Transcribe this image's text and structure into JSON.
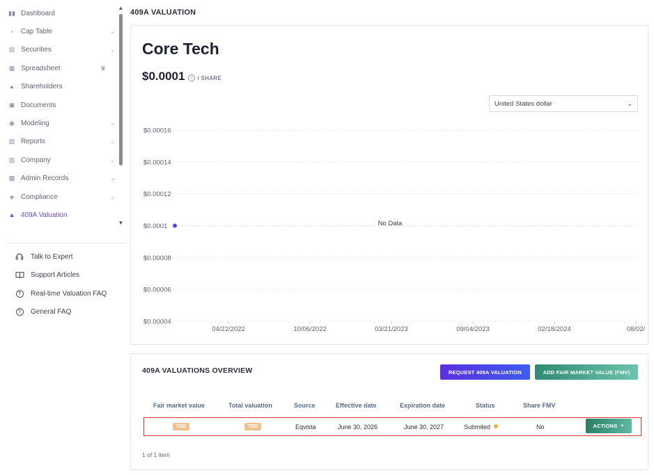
{
  "sidebar": {
    "items": [
      {
        "label": "Dashboard",
        "icon": "dashboard-icon",
        "glyph": "▮▮",
        "chevron": false
      },
      {
        "label": "Cap Table",
        "icon": "pie-chart-icon",
        "glyph": "◔",
        "chevron": true
      },
      {
        "label": "Securities",
        "icon": "clipboard-icon",
        "glyph": "▤",
        "chevron": true
      },
      {
        "label": "Spreadsheet",
        "icon": "table-icon",
        "glyph": "▦",
        "chevron": false,
        "crown": true
      },
      {
        "label": "Shareholders",
        "icon": "user-icon",
        "glyph": "●",
        "chevron": false
      },
      {
        "label": "Documents",
        "icon": "folder-icon",
        "glyph": "▣",
        "chevron": false
      },
      {
        "label": "Modeling",
        "icon": "lightbulb-icon",
        "glyph": "◉",
        "chevron": true
      },
      {
        "label": "Reports",
        "icon": "report-icon",
        "glyph": "▧",
        "chevron": true
      },
      {
        "label": "Company",
        "icon": "building-icon",
        "glyph": "▥",
        "chevron": true
      },
      {
        "label": "Admin Records",
        "icon": "records-icon",
        "glyph": "▩",
        "chevron": true
      },
      {
        "label": "Compliance",
        "icon": "shield-icon",
        "glyph": "◈",
        "chevron": true
      },
      {
        "label": "409A Valuation",
        "icon": "bar-chart-icon",
        "glyph": "▲",
        "chevron": false,
        "active": true
      }
    ],
    "help": [
      {
        "label": "Talk to Expert",
        "icon": "headset-icon"
      },
      {
        "label": "Support Articles",
        "icon": "book-icon"
      },
      {
        "label": "Real-time Valuation FAQ",
        "icon": "question-circle-icon"
      },
      {
        "label": "General FAQ",
        "icon": "question-circle-icon"
      }
    ]
  },
  "page": {
    "title": "409A VALUATION"
  },
  "summary": {
    "company": "Core Tech",
    "price": "$0.0001",
    "per_share": "/ SHARE",
    "currency": "United States dollar"
  },
  "chart_data": {
    "type": "scatter",
    "x_tick_labels": [
      "04/22/2022",
      "10/06/2022",
      "03/21/2023",
      "09/04/2023",
      "02/18/2024",
      "08/02/"
    ],
    "y_tick_labels": [
      "$0.00016",
      "$0.00014",
      "$0.00012",
      "$0.0001",
      "$0.00008",
      "$0.00006",
      "$0.00004"
    ],
    "y_ticks": [
      0.00016,
      0.00014,
      0.00012,
      0.0001,
      8e-05,
      6e-05,
      4e-05
    ],
    "ylim": [
      4e-05,
      0.00016
    ],
    "points": [
      {
        "y": 0.0001
      }
    ],
    "point_color": "#6c3ce0",
    "grid": true,
    "empty_message": "No Data"
  },
  "overview": {
    "title": "409A VALUATIONS OVERVIEW",
    "request_button": "REQUEST 409A VALUATION",
    "fmv_button": "ADD FAIR MARKET VALUE (FMV)",
    "columns": [
      "Fair market value",
      "Total valuation",
      "Source",
      "Effective date",
      "Expiration date",
      "Status",
      "Share FMV"
    ],
    "row": {
      "fair_market_value": "TBD",
      "total_valuation": "TBD",
      "source": "Eqvista",
      "effective_date": "June 30, 2026",
      "expiration_date": "June 30, 2027",
      "status": "Submited",
      "share_fmv": "No",
      "actions": "ACTIONS"
    },
    "pager": "1 of 1 item"
  },
  "colors": {
    "accent": "#6c4bd6",
    "status_pending": "#f0b13a",
    "highlight_border": "#d0352f"
  }
}
